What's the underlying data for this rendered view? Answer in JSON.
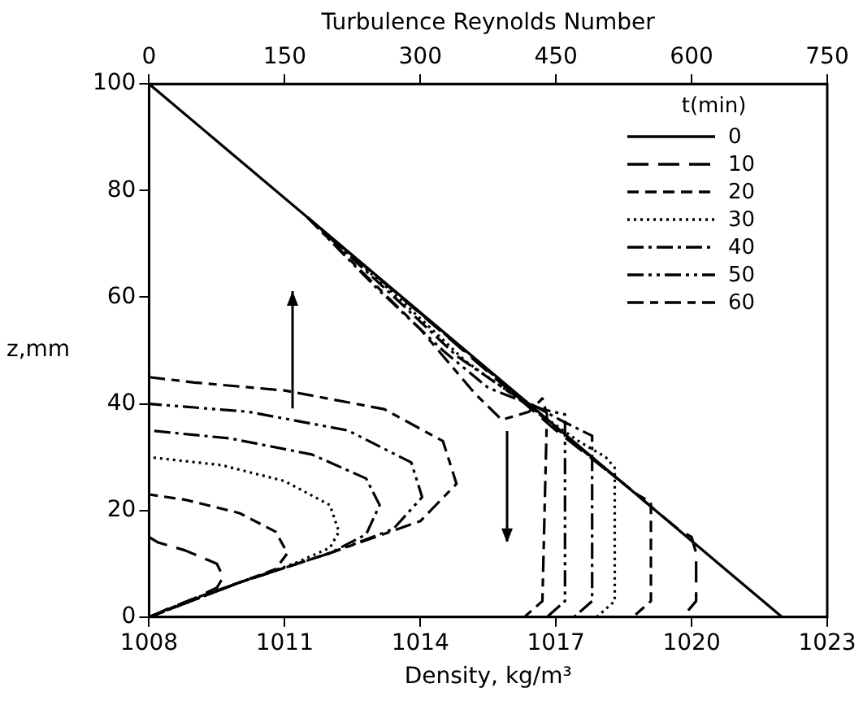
{
  "chart_data": {
    "type": "line",
    "xlabel": "Density, kg/m³",
    "x2label": "Turbulence Reynolds Number",
    "ylabel": "z,mm",
    "legend_title": "t(min)",
    "legend": "top right",
    "grid": false,
    "marker": "none",
    "xlim": [
      1008,
      1023
    ],
    "xticks": [
      1008,
      1011,
      1014,
      1017,
      1020,
      1023
    ],
    "x2lim": [
      0,
      750
    ],
    "x2ticks": [
      0,
      150,
      300,
      450,
      600,
      750
    ],
    "ylim": [
      0,
      100
    ],
    "yticks": [
      0,
      20,
      40,
      60,
      80,
      100
    ],
    "series": [
      {
        "name": "0",
        "color": "#000000",
        "line_style": "solid",
        "x": [
          1008,
          1022
        ],
        "values": [
          100,
          0
        ]
      },
      {
        "name": "10",
        "color": "#000000",
        "line_style": "long-dashed",
        "x": [
          1011.5,
          1014.4,
          1017,
          1018.5,
          1019.7,
          1020,
          1020.1,
          1020.1,
          1019.8
        ],
        "values": [
          75,
          54,
          35,
          25,
          16.5,
          15,
          12,
          3,
          0
        ]
      },
      {
        "name": "20",
        "color": "#000000",
        "line_style": "dashed",
        "x": [
          1011.5,
          1014,
          1016.5,
          1018.2,
          1018.8,
          1019.1,
          1019.1,
          1018.7
        ],
        "values": [
          75,
          57,
          39,
          27,
          23,
          21.5,
          3,
          0
        ]
      },
      {
        "name": "30",
        "color": "#000000",
        "line_style": "dotted",
        "x": [
          1011.5,
          1013.5,
          1015,
          1016.5,
          1017.5,
          1018.1,
          1018.3,
          1018.3,
          1017.9
        ],
        "values": [
          75,
          60,
          48,
          39,
          33,
          30,
          28,
          3,
          0
        ]
      },
      {
        "name": "40",
        "color": "#000000",
        "line_style": "dash-dot",
        "x": [
          1011.5,
          1013.3,
          1014.8,
          1016,
          1017.2,
          1017.8,
          1017.8,
          1017.4
        ],
        "values": [
          75,
          61,
          49,
          42,
          36.5,
          34,
          3,
          0
        ]
      },
      {
        "name": "50",
        "color": "#000000",
        "line_style": "dash-dot-dot",
        "x": [
          1011.5,
          1013,
          1014.5,
          1015.5,
          1016.7,
          1017.2,
          1017.2,
          1016.8
        ],
        "values": [
          75,
          62,
          50,
          43,
          39,
          38,
          3,
          0
        ]
      },
      {
        "name": "60",
        "color": "#000000",
        "line_style": "long-short-dashed",
        "x": [
          1011.5,
          1012.8,
          1014,
          1015.2,
          1015.8,
          1016.4,
          1016.7,
          1016.8,
          1016.7,
          1016.3
        ],
        "values": [
          75,
          64,
          54,
          42,
          37,
          38.5,
          41,
          38,
          3,
          0
        ]
      },
      {
        "color": "#000000",
        "line_style": "long-dashed",
        "axis": "x2",
        "x": [
          0,
          20,
          50,
          75,
          82,
          75,
          40,
          10,
          0
        ],
        "values": [
          0,
          1.5,
          3.5,
          5.5,
          7.5,
          10,
          12.5,
          14,
          15
        ]
      },
      {
        "color": "#000000",
        "line_style": "dashed",
        "axis": "x2",
        "x": [
          0,
          50,
          100,
          140,
          153,
          140,
          100,
          40,
          0
        ],
        "values": [
          0,
          3.5,
          6.5,
          9,
          12,
          16,
          19.5,
          22,
          23
        ]
      },
      {
        "color": "#000000",
        "line_style": "dotted",
        "axis": "x2",
        "x": [
          0,
          100,
          160,
          200,
          210,
          200,
          150,
          80,
          0
        ],
        "values": [
          0,
          6.5,
          10,
          13,
          16,
          21,
          25.5,
          28.5,
          30
        ]
      },
      {
        "color": "#000000",
        "line_style": "dash-dot",
        "axis": "x2",
        "x": [
          0,
          100,
          200,
          240,
          255,
          240,
          180,
          90,
          0
        ],
        "values": [
          0,
          6.5,
          12,
          15.5,
          21,
          26,
          30.5,
          33.5,
          35
        ]
      },
      {
        "color": "#000000",
        "line_style": "dash-dot-dot",
        "axis": "x2",
        "x": [
          0,
          100,
          200,
          270,
          302,
          290,
          220,
          110,
          0
        ],
        "values": [
          0,
          6.5,
          12,
          16.5,
          22.5,
          29,
          35,
          38.5,
          40
        ]
      },
      {
        "color": "#000000",
        "line_style": "long-short-dashed",
        "axis": "x2",
        "x": [
          0,
          100,
          200,
          300,
          340,
          325,
          260,
          150,
          50,
          0
        ],
        "values": [
          0,
          6.5,
          12,
          18,
          25,
          33,
          39,
          42.5,
          44,
          45
        ]
      }
    ]
  }
}
